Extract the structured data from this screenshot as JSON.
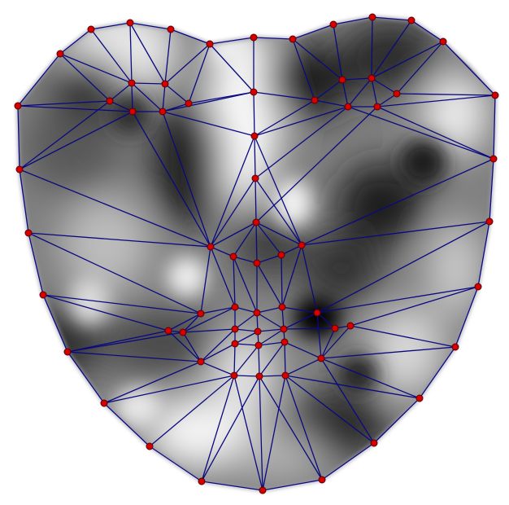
{
  "figure": {
    "type": "face-landmark-triangulation",
    "background_color": "#ffffff",
    "edge_color": "#0a0a80",
    "node_fill": "#d40000",
    "node_stroke": "#5a0000",
    "texture_light": "#f2f2f2",
    "texture_dark": "#101010"
  }
}
